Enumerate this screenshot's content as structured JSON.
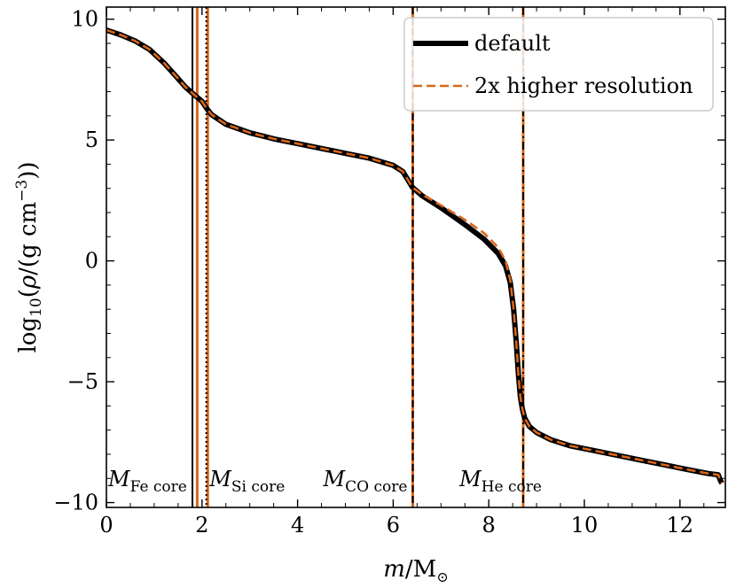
{
  "chart_data": {
    "type": "line",
    "title": "",
    "xlabel": "m/M⊙",
    "ylabel": "log10(ρ/(g cm−3))",
    "xlim": [
      0,
      12.95
    ],
    "ylim": [
      -10.2,
      10.5
    ],
    "xticks": [
      0,
      2,
      4,
      6,
      8,
      10,
      12
    ],
    "yticks": [
      -10,
      -5,
      0,
      5,
      10
    ],
    "xtick_labels": [
      "0",
      "2",
      "4",
      "6",
      "8",
      "10",
      "12"
    ],
    "ytick_labels": [
      "−10",
      "−5",
      "0",
      "5",
      "10"
    ],
    "grid": false,
    "legend_position": "top-right",
    "series": [
      {
        "name": "default",
        "color": "#000000",
        "style": "solid",
        "x": [
          0,
          0.3,
          0.6,
          0.9,
          1.2,
          1.45,
          1.65,
          1.85,
          2.0,
          2.1,
          2.2,
          2.5,
          3.0,
          3.5,
          4.0,
          4.5,
          5.0,
          5.5,
          6.0,
          6.2,
          6.4,
          6.6,
          7.0,
          7.5,
          7.9,
          8.2,
          8.35,
          8.45,
          8.52,
          8.58,
          8.62,
          8.66,
          8.7,
          8.75,
          8.85,
          9.0,
          9.3,
          9.7,
          10.2,
          10.7,
          11.2,
          11.7,
          12.2,
          12.6,
          12.8,
          12.85,
          12.88
        ],
        "y": [
          9.55,
          9.35,
          9.1,
          8.75,
          8.2,
          7.65,
          7.2,
          6.85,
          6.6,
          6.3,
          6.05,
          5.65,
          5.3,
          5.05,
          4.85,
          4.65,
          4.45,
          4.25,
          3.95,
          3.7,
          3.05,
          2.7,
          2.2,
          1.5,
          0.9,
          0.3,
          -0.2,
          -0.9,
          -2.0,
          -3.5,
          -4.7,
          -5.6,
          -6.1,
          -6.5,
          -6.85,
          -7.1,
          -7.4,
          -7.65,
          -7.85,
          -8.05,
          -8.25,
          -8.45,
          -8.65,
          -8.8,
          -8.85,
          -9.1,
          -9.2
        ]
      },
      {
        "name": "2x higher resolution",
        "color": "#d9661a",
        "style": "dashed",
        "x": [
          0,
          0.3,
          0.6,
          0.9,
          1.2,
          1.45,
          1.65,
          1.85,
          2.0,
          2.1,
          2.2,
          2.5,
          3.0,
          3.5,
          4.0,
          4.5,
          5.0,
          5.5,
          6.0,
          6.2,
          6.4,
          6.6,
          7.0,
          7.5,
          7.9,
          8.2,
          8.35,
          8.45,
          8.52,
          8.58,
          8.62,
          8.66,
          8.7,
          8.75,
          8.85,
          9.0,
          9.3,
          9.7,
          10.2,
          10.7,
          11.2,
          11.7,
          12.2,
          12.6,
          12.8,
          12.85,
          12.88
        ],
        "y": [
          9.55,
          9.35,
          9.1,
          8.75,
          8.2,
          7.65,
          7.2,
          6.85,
          6.6,
          6.3,
          6.05,
          5.65,
          5.3,
          5.05,
          4.85,
          4.65,
          4.45,
          4.25,
          3.95,
          3.7,
          3.05,
          2.75,
          2.3,
          1.7,
          1.15,
          0.55,
          0.0,
          -0.8,
          -2.0,
          -3.5,
          -4.7,
          -5.6,
          -6.1,
          -6.5,
          -6.85,
          -7.1,
          -7.4,
          -7.65,
          -7.85,
          -8.05,
          -8.25,
          -8.45,
          -8.65,
          -8.8,
          -8.85,
          -9.1,
          -9.2
        ]
      }
    ],
    "core_boundaries": [
      {
        "label_main": "M",
        "label_sub": "Fe core",
        "label_x": 0.0,
        "default_x": 1.8,
        "highres_x": 1.9
      },
      {
        "label_main": "M",
        "label_sub": "Si core",
        "label_x": 2.12,
        "default_x": 2.09,
        "highres_x": 2.12
      },
      {
        "label_main": "M",
        "label_sub": "CO core",
        "label_x": 4.5,
        "default_x": 6.41,
        "highres_x": 6.41
      },
      {
        "label_main": "M",
        "label_sub": "He core",
        "label_x": 7.35,
        "default_x": 8.72,
        "highres_x": 8.72
      }
    ],
    "core_line_styles": {
      "Fe core": "solid",
      "Si core": "dotted",
      "CO core": "dashed",
      "He core": "dashdot"
    },
    "colors": {
      "default": "#000000",
      "highres": "#d9661a"
    }
  }
}
